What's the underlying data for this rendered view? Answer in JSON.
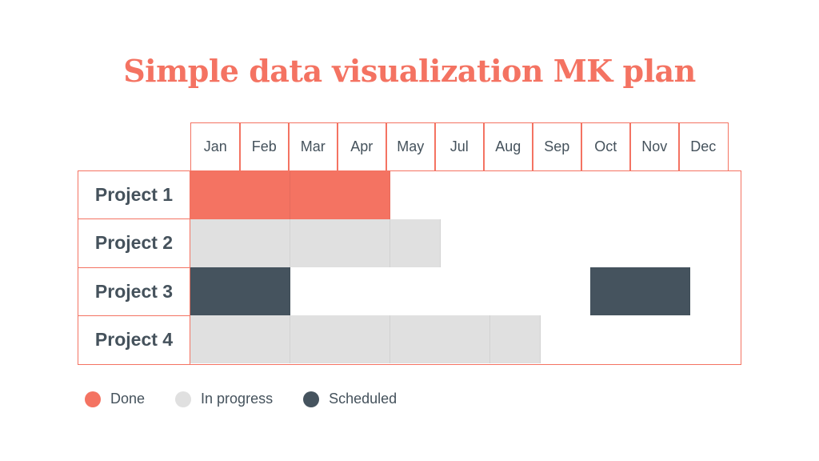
{
  "chart_data": {
    "type": "gantt",
    "title": "Simple data visualization MK plan",
    "months": [
      "Jan",
      "Feb",
      "Mar",
      "Apr",
      "May",
      "Jul",
      "Aug",
      "Sep",
      "Oct",
      "Nov",
      "Dec"
    ],
    "rows": [
      {
        "name": "Project 1",
        "segments": [
          {
            "start": "Jan",
            "end": "Apr",
            "status": "Done"
          }
        ]
      },
      {
        "name": "Project 2",
        "segments": [
          {
            "start": "Jan",
            "end": "May",
            "status": "In progress"
          }
        ]
      },
      {
        "name": "Project 3",
        "segments": [
          {
            "start": "Jan",
            "end": "Feb",
            "status": "Scheduled"
          },
          {
            "start": "Oct",
            "end": "Nov",
            "status": "Scheduled"
          }
        ]
      },
      {
        "name": "Project 4",
        "segments": [
          {
            "start": "Jan",
            "end": "Aug",
            "status": "In progress"
          }
        ]
      }
    ],
    "legend": [
      {
        "label": "Done",
        "color": "#f47362"
      },
      {
        "label": "In progress",
        "color": "#e0e0e0"
      },
      {
        "label": "Scheduled",
        "color": "#45535e"
      }
    ],
    "legend_position": "bottom-left"
  }
}
